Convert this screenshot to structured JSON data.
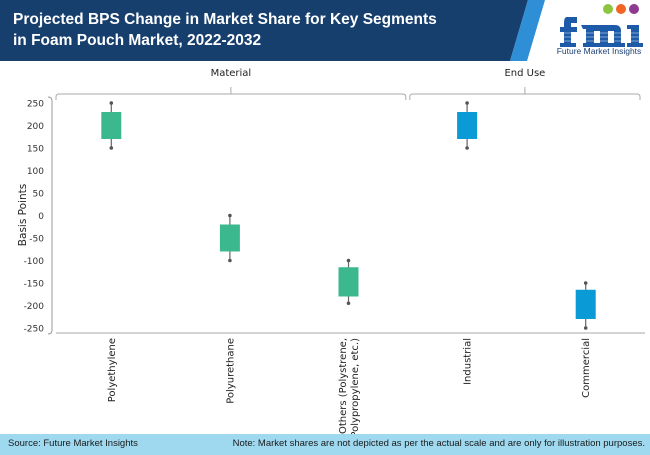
{
  "header": {
    "title": "Projected BPS Change in Market Share for Key Segments in Foam Pouch Market, 2022-2032",
    "logo_mark": "fmi",
    "logo_text": "Future Market Insights",
    "bg_color": "#173f6e",
    "accent_color": "#2e8ed6"
  },
  "chart_data": {
    "type": "box",
    "title": "Projected BPS Change in Market Share for Key Segments in Foam Pouch Market, 2022-2032",
    "ylabel": "Basis Points",
    "xlabel": "",
    "ylim": [
      -250,
      250
    ],
    "yticks": [
      250,
      200,
      150,
      100,
      50,
      0,
      -50,
      -100,
      -150,
      -200,
      -250
    ],
    "grid": false,
    "groups": [
      {
        "label": "Material",
        "categories": [
          "Polyethylene",
          "Polyurethane",
          "Others (Polystrene, Polypropylene, etc.)"
        ]
      },
      {
        "label": "End Use",
        "categories": [
          "Industrial",
          "Commercial"
        ]
      }
    ],
    "categories": [
      "Polyethylene",
      "Polyurethane",
      "Others (Polystrene, Polypropylene, etc.)",
      "Industrial",
      "Commercial"
    ],
    "category_label_lines": [
      [
        "Polyethylene"
      ],
      [
        "Polyurethane"
      ],
      [
        "Others (Polystrene,",
        "Polypropylene, etc.)"
      ],
      [
        "Industrial"
      ],
      [
        "Commercial"
      ]
    ],
    "series": [
      {
        "name": "Polyethylene",
        "whisker_high": 250,
        "box_high": 230,
        "box_low": 170,
        "whisker_low": 150,
        "color": "#3cb88f"
      },
      {
        "name": "Polyurethane",
        "whisker_high": 0,
        "box_high": -20,
        "box_low": -80,
        "whisker_low": -100,
        "color": "#3cb88f"
      },
      {
        "name": "Others (Polystrene, Polypropylene, etc.)",
        "whisker_high": -100,
        "box_high": -115,
        "box_low": -180,
        "whisker_low": -195,
        "color": "#3cb88f"
      },
      {
        "name": "Industrial",
        "whisker_high": 250,
        "box_high": 230,
        "box_low": 170,
        "whisker_low": 150,
        "color": "#0a9ad6"
      },
      {
        "name": "Commercial",
        "whisker_high": -150,
        "box_high": -165,
        "box_low": -230,
        "whisker_low": -250,
        "color": "#0a9ad6"
      }
    ]
  },
  "footer": {
    "source": "Source: Future Market Insights",
    "note": "Note: Market shares are not depicted as per the actual scale and are only for illustration purposes."
  }
}
